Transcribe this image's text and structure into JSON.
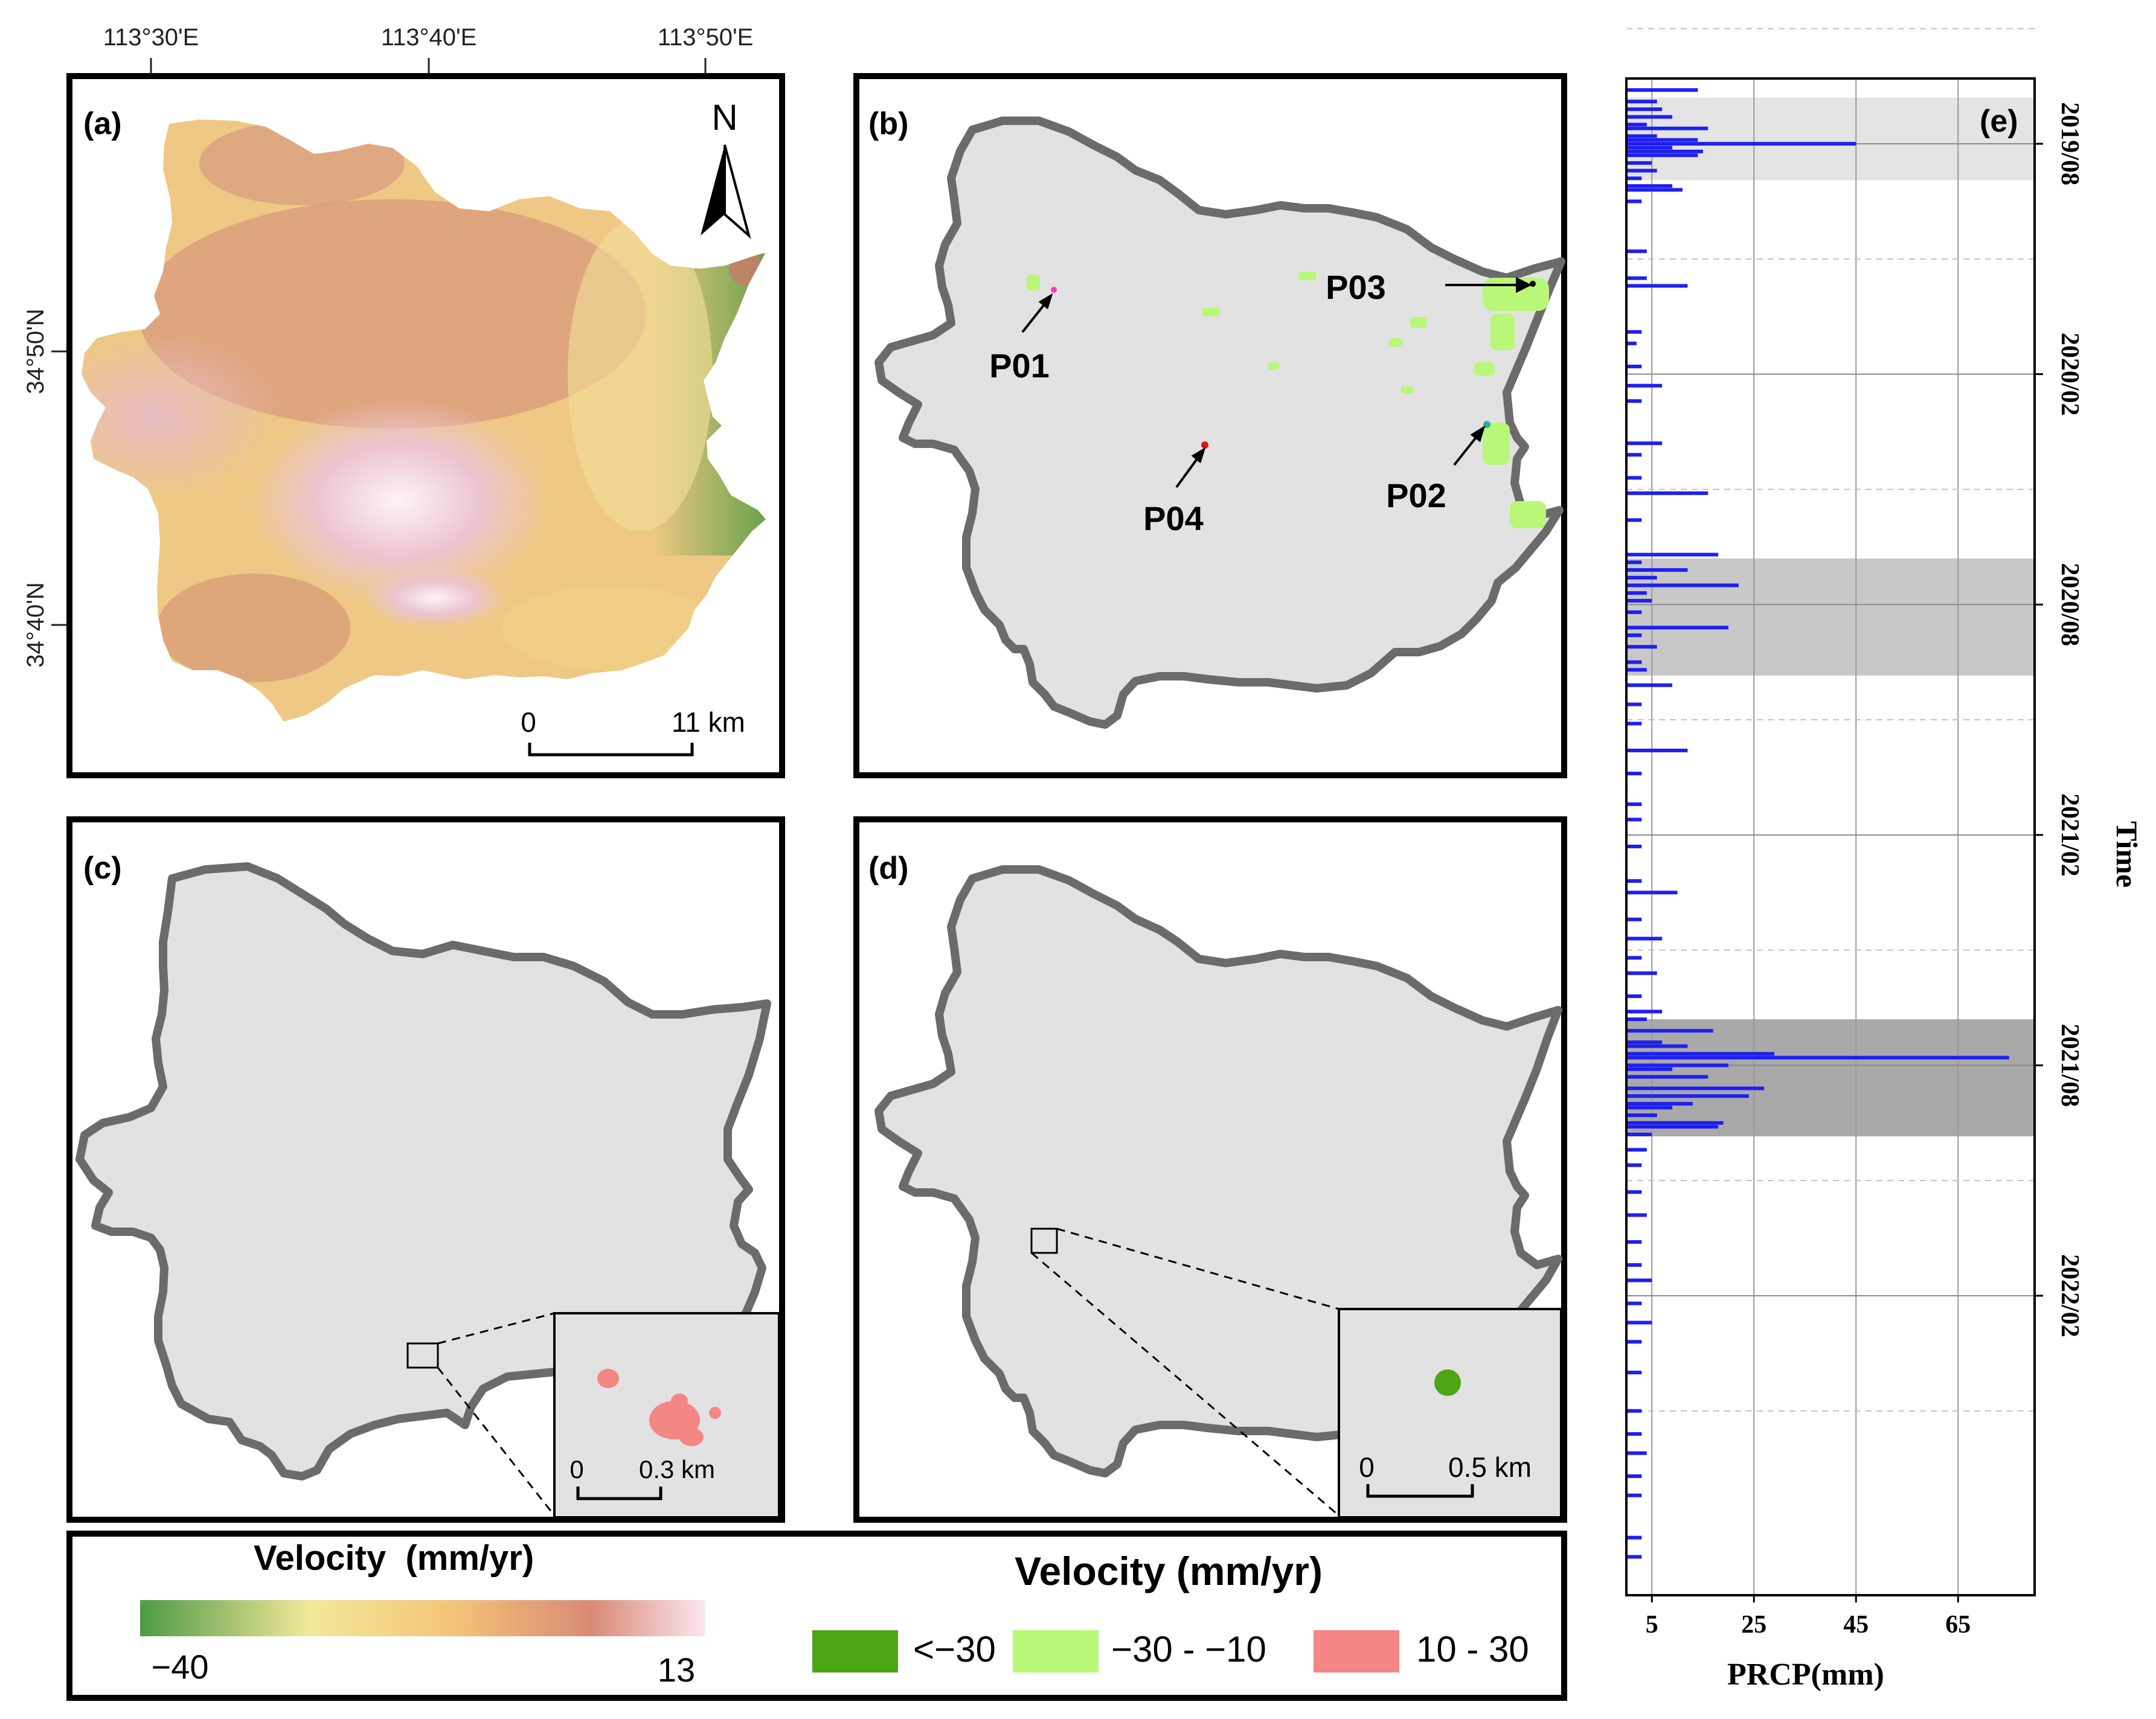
{
  "figure": {
    "coords": {
      "lon_labels": [
        "113°30'E",
        "113°40'E",
        "113°50'E"
      ],
      "lat_labels": [
        "34°50'N",
        "34°40'N"
      ]
    },
    "panels": {
      "a": {
        "label": "(a)",
        "north": "N",
        "scale_start": "0",
        "scale_end": "11 km"
      },
      "b": {
        "label": "(b)",
        "points": [
          "P01",
          "P02",
          "P03",
          "P04"
        ]
      },
      "c": {
        "label": "(c)",
        "inset_scale_start": "0",
        "inset_scale_end": "0.3 km"
      },
      "d": {
        "label": "(d)",
        "inset_scale_start": "0",
        "inset_scale_end": "0.5 km"
      }
    },
    "legend": {
      "continuous_title": "Velocity  (mm/yr)",
      "continuous_min": "−40",
      "continuous_max": "13",
      "classes_title": "Velocity (mm/yr)",
      "classes": [
        {
          "label": "<−30",
          "color": "#4da614"
        },
        {
          "label": "−30 - −10",
          "color": "#b8f778"
        },
        {
          "label": "10 - 30",
          "color": "#f48686"
        }
      ]
    },
    "colors": {
      "ramp": [
        "#4f9a45",
        "#f2e89a",
        "#f4c478",
        "#d98a76",
        "#fde6f0"
      ],
      "region_fill": "#e2e2e2",
      "border": "#6b6b6b",
      "bar": "#1f1ff2",
      "season_light": "#e4e4e4",
      "season_mid": "#c8c8c8",
      "season_dark": "#a9a9a9"
    }
  },
  "chart_data": {
    "type": "bar",
    "orientation": "horizontal",
    "panel_label": "(e)",
    "title": "",
    "xlabel": "PRCP(mm)",
    "ylabel": "Time",
    "xlim": [
      0,
      80
    ],
    "x_ticks": [
      5,
      25,
      45,
      65
    ],
    "y_ticks": [
      "2019/08",
      "2020/02",
      "2020/08",
      "2021/02",
      "2021/08",
      "2022/02"
    ],
    "time_range_months": [
      -1.7,
      37.8
    ],
    "shaded_periods": [
      {
        "start_month": -1.2,
        "end_month": 0.95,
        "tone": "light"
      },
      {
        "start_month": 10.8,
        "end_month": 13.85,
        "tone": "mid"
      },
      {
        "start_month": 22.8,
        "end_month": 25.85,
        "tone": "dark"
      }
    ],
    "series": [
      {
        "name": "PRCP",
        "points": [
          [
            -1.4,
            14
          ],
          [
            -1.1,
            6
          ],
          [
            -0.9,
            7
          ],
          [
            -0.7,
            9
          ],
          [
            -0.5,
            4
          ],
          [
            -0.4,
            16
          ],
          [
            -0.2,
            6
          ],
          [
            -0.1,
            14
          ],
          [
            0.0,
            45
          ],
          [
            0.1,
            9
          ],
          [
            0.2,
            15
          ],
          [
            0.3,
            14
          ],
          [
            0.5,
            5
          ],
          [
            0.7,
            6
          ],
          [
            0.9,
            3
          ],
          [
            1.1,
            9
          ],
          [
            1.2,
            11
          ],
          [
            1.5,
            3
          ],
          [
            2.8,
            4
          ],
          [
            3.5,
            4
          ],
          [
            3.7,
            12
          ],
          [
            4.9,
            3
          ],
          [
            5.2,
            2
          ],
          [
            5.8,
            3
          ],
          [
            6.3,
            7
          ],
          [
            6.7,
            3
          ],
          [
            7.8,
            7
          ],
          [
            8.1,
            3
          ],
          [
            8.7,
            3
          ],
          [
            9.1,
            16
          ],
          [
            9.8,
            3
          ],
          [
            10.7,
            18
          ],
          [
            10.9,
            3
          ],
          [
            11.1,
            12
          ],
          [
            11.3,
            6
          ],
          [
            11.5,
            22
          ],
          [
            11.7,
            4
          ],
          [
            11.9,
            5
          ],
          [
            12.2,
            3
          ],
          [
            12.6,
            20
          ],
          [
            12.8,
            3
          ],
          [
            13.1,
            6
          ],
          [
            13.5,
            3
          ],
          [
            13.7,
            4
          ],
          [
            14.1,
            9
          ],
          [
            14.6,
            3
          ],
          [
            15.1,
            3
          ],
          [
            15.8,
            12
          ],
          [
            16.4,
            3
          ],
          [
            17.2,
            3
          ],
          [
            17.6,
            3
          ],
          [
            18.3,
            3
          ],
          [
            19.2,
            3
          ],
          [
            19.5,
            10
          ],
          [
            20.2,
            3
          ],
          [
            20.7,
            7
          ],
          [
            21.2,
            3
          ],
          [
            21.6,
            6
          ],
          [
            22.2,
            3
          ],
          [
            22.6,
            7
          ],
          [
            22.8,
            4
          ],
          [
            23.1,
            17
          ],
          [
            23.4,
            7
          ],
          [
            23.5,
            12
          ],
          [
            23.7,
            29
          ],
          [
            23.8,
            75
          ],
          [
            24.0,
            20
          ],
          [
            24.1,
            9
          ],
          [
            24.3,
            16
          ],
          [
            24.6,
            27
          ],
          [
            24.8,
            24
          ],
          [
            25.0,
            13
          ],
          [
            25.1,
            9
          ],
          [
            25.3,
            6
          ],
          [
            25.5,
            19
          ],
          [
            25.6,
            18
          ],
          [
            25.8,
            5
          ],
          [
            26.2,
            4
          ],
          [
            26.6,
            3
          ],
          [
            27.3,
            3
          ],
          [
            27.9,
            4
          ],
          [
            28.6,
            3
          ],
          [
            29.2,
            3
          ],
          [
            29.6,
            5
          ],
          [
            30.2,
            3
          ],
          [
            30.7,
            5
          ],
          [
            31.2,
            3
          ],
          [
            32.0,
            3
          ],
          [
            33.0,
            3
          ],
          [
            33.6,
            3
          ],
          [
            34.1,
            4
          ],
          [
            34.7,
            3
          ],
          [
            35.2,
            3
          ],
          [
            36.3,
            3
          ],
          [
            36.8,
            3
          ]
        ]
      }
    ]
  }
}
